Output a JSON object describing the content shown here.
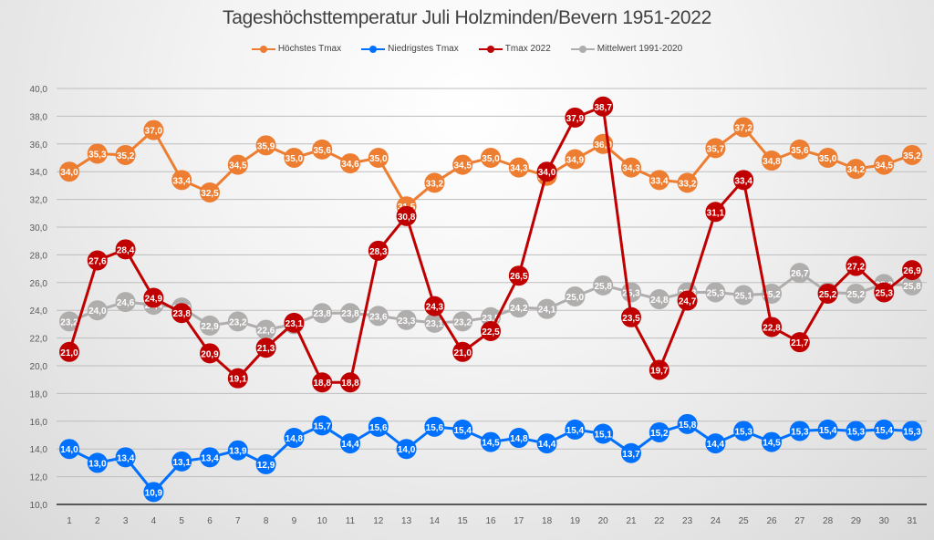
{
  "chart_data": {
    "type": "line",
    "title": "Tageshöchsttemperatur Juli Holzminden/Bevern 1951-2022",
    "xlabel": "",
    "ylabel": "",
    "ylim": [
      10,
      40
    ],
    "y_ticks": [
      "10,0",
      "12,0",
      "14,0",
      "16,0",
      "18,0",
      "20,0",
      "22,0",
      "24,0",
      "26,0",
      "28,0",
      "30,0",
      "32,0",
      "34,0",
      "36,0",
      "38,0",
      "40,0"
    ],
    "y_tick_values": [
      10,
      12,
      14,
      16,
      18,
      20,
      22,
      24,
      26,
      28,
      30,
      32,
      34,
      36,
      38,
      40
    ],
    "grid": true,
    "legend_position": "top",
    "x": [
      1,
      2,
      3,
      4,
      5,
      6,
      7,
      8,
      9,
      10,
      11,
      12,
      13,
      14,
      15,
      16,
      17,
      18,
      19,
      20,
      21,
      22,
      23,
      24,
      25,
      26,
      27,
      28,
      29,
      30,
      31
    ],
    "series": [
      {
        "name": "Höchstes Tmax",
        "color": "#ED7D31",
        "values": [
          34.0,
          35.3,
          35.2,
          37.0,
          33.4,
          32.5,
          34.5,
          35.9,
          35.0,
          35.6,
          34.6,
          35.0,
          31.5,
          33.2,
          34.5,
          35.0,
          34.3,
          33.7,
          34.9,
          36.0,
          34.3,
          33.4,
          33.2,
          35.7,
          37.2,
          34.8,
          35.6,
          35.0,
          34.2,
          34.5,
          35.2
        ]
      },
      {
        "name": "Niedrigstes Tmax",
        "color": "#0070FF",
        "values": [
          14.0,
          13.0,
          13.4,
          10.9,
          13.1,
          13.4,
          13.9,
          12.9,
          14.8,
          15.7,
          14.4,
          15.6,
          14.0,
          15.6,
          15.4,
          14.5,
          14.8,
          14.4,
          15.4,
          15.1,
          13.7,
          15.2,
          15.8,
          14.4,
          15.3,
          14.5,
          15.3,
          15.4,
          15.3,
          15.4,
          15.3
        ]
      },
      {
        "name": "Tmax 2022",
        "color": "#C00000",
        "values": [
          21.0,
          27.6,
          28.4,
          24.9,
          23.8,
          20.9,
          19.1,
          21.3,
          23.1,
          18.8,
          18.8,
          28.3,
          30.8,
          24.3,
          21.0,
          22.5,
          26.5,
          34.0,
          37.9,
          38.7,
          23.5,
          19.7,
          24.7,
          31.1,
          33.4,
          22.8,
          21.7,
          25.2,
          27.2,
          25.3,
          26.9
        ]
      },
      {
        "name": "Mittelwert 1991-2020",
        "color": "#B0ADAD",
        "values": [
          23.2,
          24.0,
          24.6,
          24.4,
          24.2,
          22.9,
          23.2,
          22.6,
          23.0,
          23.8,
          23.8,
          23.6,
          23.3,
          23.1,
          23.2,
          23.5,
          24.2,
          24.1,
          25.0,
          25.8,
          25.3,
          24.8,
          25.3,
          25.3,
          25.1,
          25.2,
          26.7,
          25.3,
          25.2,
          25.9,
          25.8
        ]
      }
    ]
  }
}
